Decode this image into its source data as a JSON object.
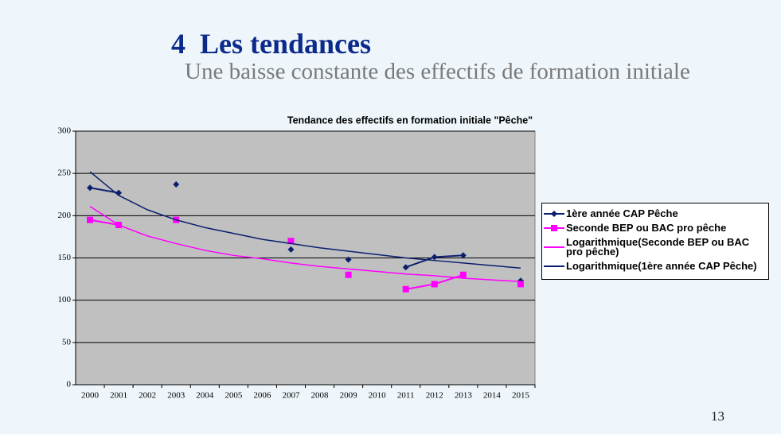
{
  "slide": {
    "title": "4  Les tendances",
    "subtitle": "Une baisse constante des effectifs de formation initiale",
    "page_number": "13"
  },
  "chart_data": {
    "type": "line",
    "title": "Tendance des effectifs en formation initiale \"Pêche\"",
    "categories": [
      "2000",
      "2001",
      "2002",
      "2003",
      "2004",
      "2005",
      "2006",
      "2007",
      "2008",
      "2009",
      "2010",
      "2011",
      "2012",
      "2013",
      "2014",
      "2015"
    ],
    "series": [
      {
        "name": "1ère année CAP Pêche",
        "color": "#0b1f6e",
        "marker": "diamond",
        "values": [
          233,
          227,
          null,
          237,
          null,
          null,
          null,
          160,
          null,
          148,
          null,
          139,
          151,
          153,
          null,
          123
        ]
      },
      {
        "name": "Seconde BEP ou BAC pro pêche",
        "color": "#ff00ff",
        "marker": "square",
        "values": [
          195,
          189,
          null,
          195,
          null,
          null,
          null,
          170,
          null,
          130,
          null,
          113,
          119,
          130,
          null,
          119
        ]
      },
      {
        "name": "Logarithmique(Seconde BEP ou BAC pro pêche)",
        "color": "#ff00ff",
        "marker": "none",
        "values": [
          211,
          189,
          176,
          167,
          159,
          153,
          149,
          144,
          140,
          137,
          134,
          131,
          129,
          126,
          124,
          122
        ]
      },
      {
        "name": "Logarithmique(1ère année CAP Pêche)",
        "color": "#0b1f6e",
        "marker": "none",
        "values": [
          252,
          224,
          207,
          195,
          186,
          179,
          172,
          167,
          162,
          158,
          154,
          150,
          147,
          144,
          141,
          138
        ]
      }
    ],
    "ylim": [
      0,
      300
    ],
    "yticks": [
      0,
      50,
      100,
      150,
      200,
      250,
      300
    ],
    "grid": true,
    "legend": "right"
  }
}
